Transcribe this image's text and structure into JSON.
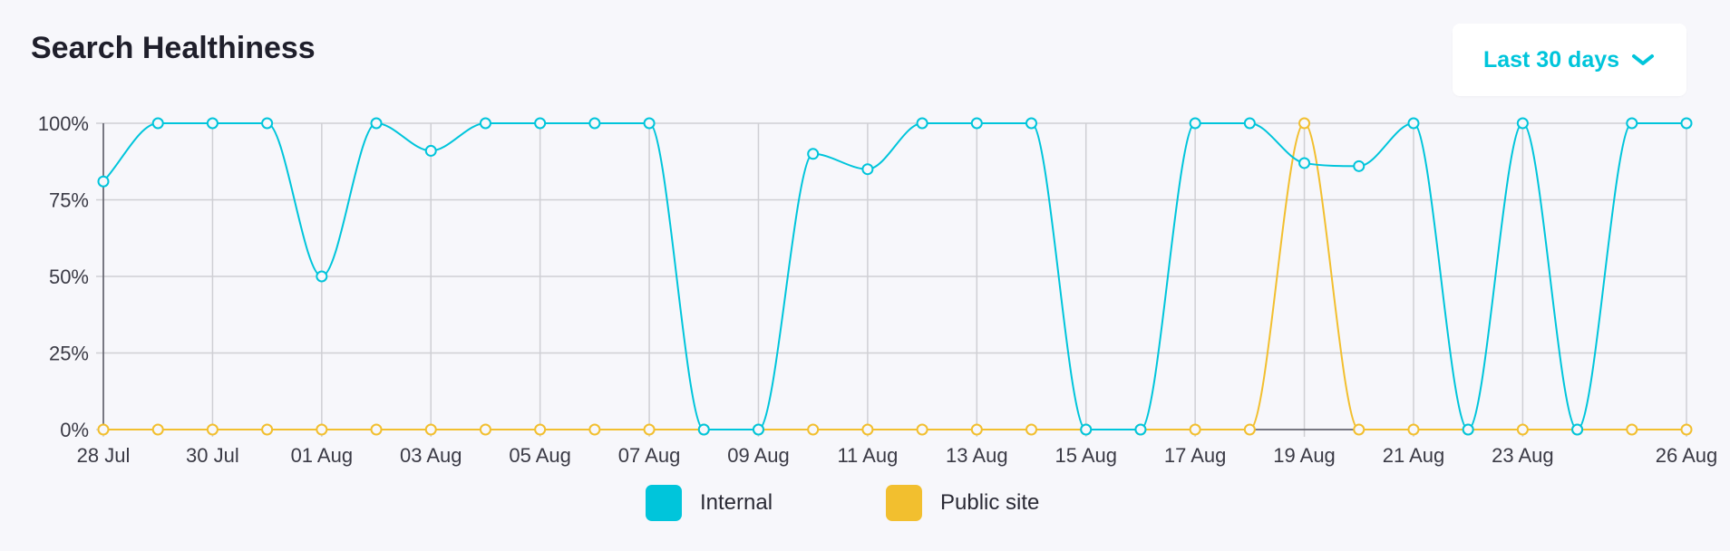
{
  "header": {
    "title": "Search Healthiness",
    "range_label": "Last 30 days"
  },
  "colors": {
    "internal": "#00c5db",
    "public": "#f2bf2f",
    "grid": "#cfcfd4",
    "axis": "#555560"
  },
  "chart_data": {
    "type": "line",
    "title": "Search Healthiness",
    "xlabel": "",
    "ylabel": "",
    "ylim": [
      0,
      100
    ],
    "y_ticks": [
      "0%",
      "25%",
      "50%",
      "75%",
      "100%"
    ],
    "x_labels": [
      "28 Jul",
      "30 Jul",
      "01 Aug",
      "03 Aug",
      "05 Aug",
      "07 Aug",
      "09 Aug",
      "11 Aug",
      "13 Aug",
      "15 Aug",
      "17 Aug",
      "19 Aug",
      "21 Aug",
      "23 Aug",
      "26 Aug"
    ],
    "x": [
      "28 Jul",
      "29 Jul",
      "30 Jul",
      "31 Jul",
      "01 Aug",
      "02 Aug",
      "03 Aug",
      "04 Aug",
      "05 Aug",
      "06 Aug",
      "07 Aug",
      "08 Aug",
      "09 Aug",
      "10 Aug",
      "11 Aug",
      "12 Aug",
      "13 Aug",
      "14 Aug",
      "15 Aug",
      "16 Aug",
      "17 Aug",
      "18 Aug",
      "19 Aug",
      "20 Aug",
      "21 Aug",
      "22 Aug",
      "23 Aug",
      "24 Aug",
      "25 Aug",
      "26 Aug"
    ],
    "grid": true,
    "legend": "bottom-center",
    "series": [
      {
        "name": "Internal",
        "values": [
          81,
          100,
          100,
          100,
          50,
          100,
          91,
          100,
          100,
          100,
          100,
          0,
          0,
          90,
          85,
          100,
          100,
          100,
          0,
          0,
          100,
          100,
          87,
          86,
          100,
          0,
          100,
          0,
          100,
          100
        ]
      },
      {
        "name": "Public site",
        "values": [
          0,
          0,
          0,
          0,
          0,
          0,
          0,
          0,
          0,
          0,
          0,
          0,
          0,
          0,
          0,
          0,
          0,
          0,
          0,
          0,
          0,
          0,
          100,
          0,
          0,
          0,
          0,
          0,
          0,
          0
        ]
      }
    ]
  }
}
